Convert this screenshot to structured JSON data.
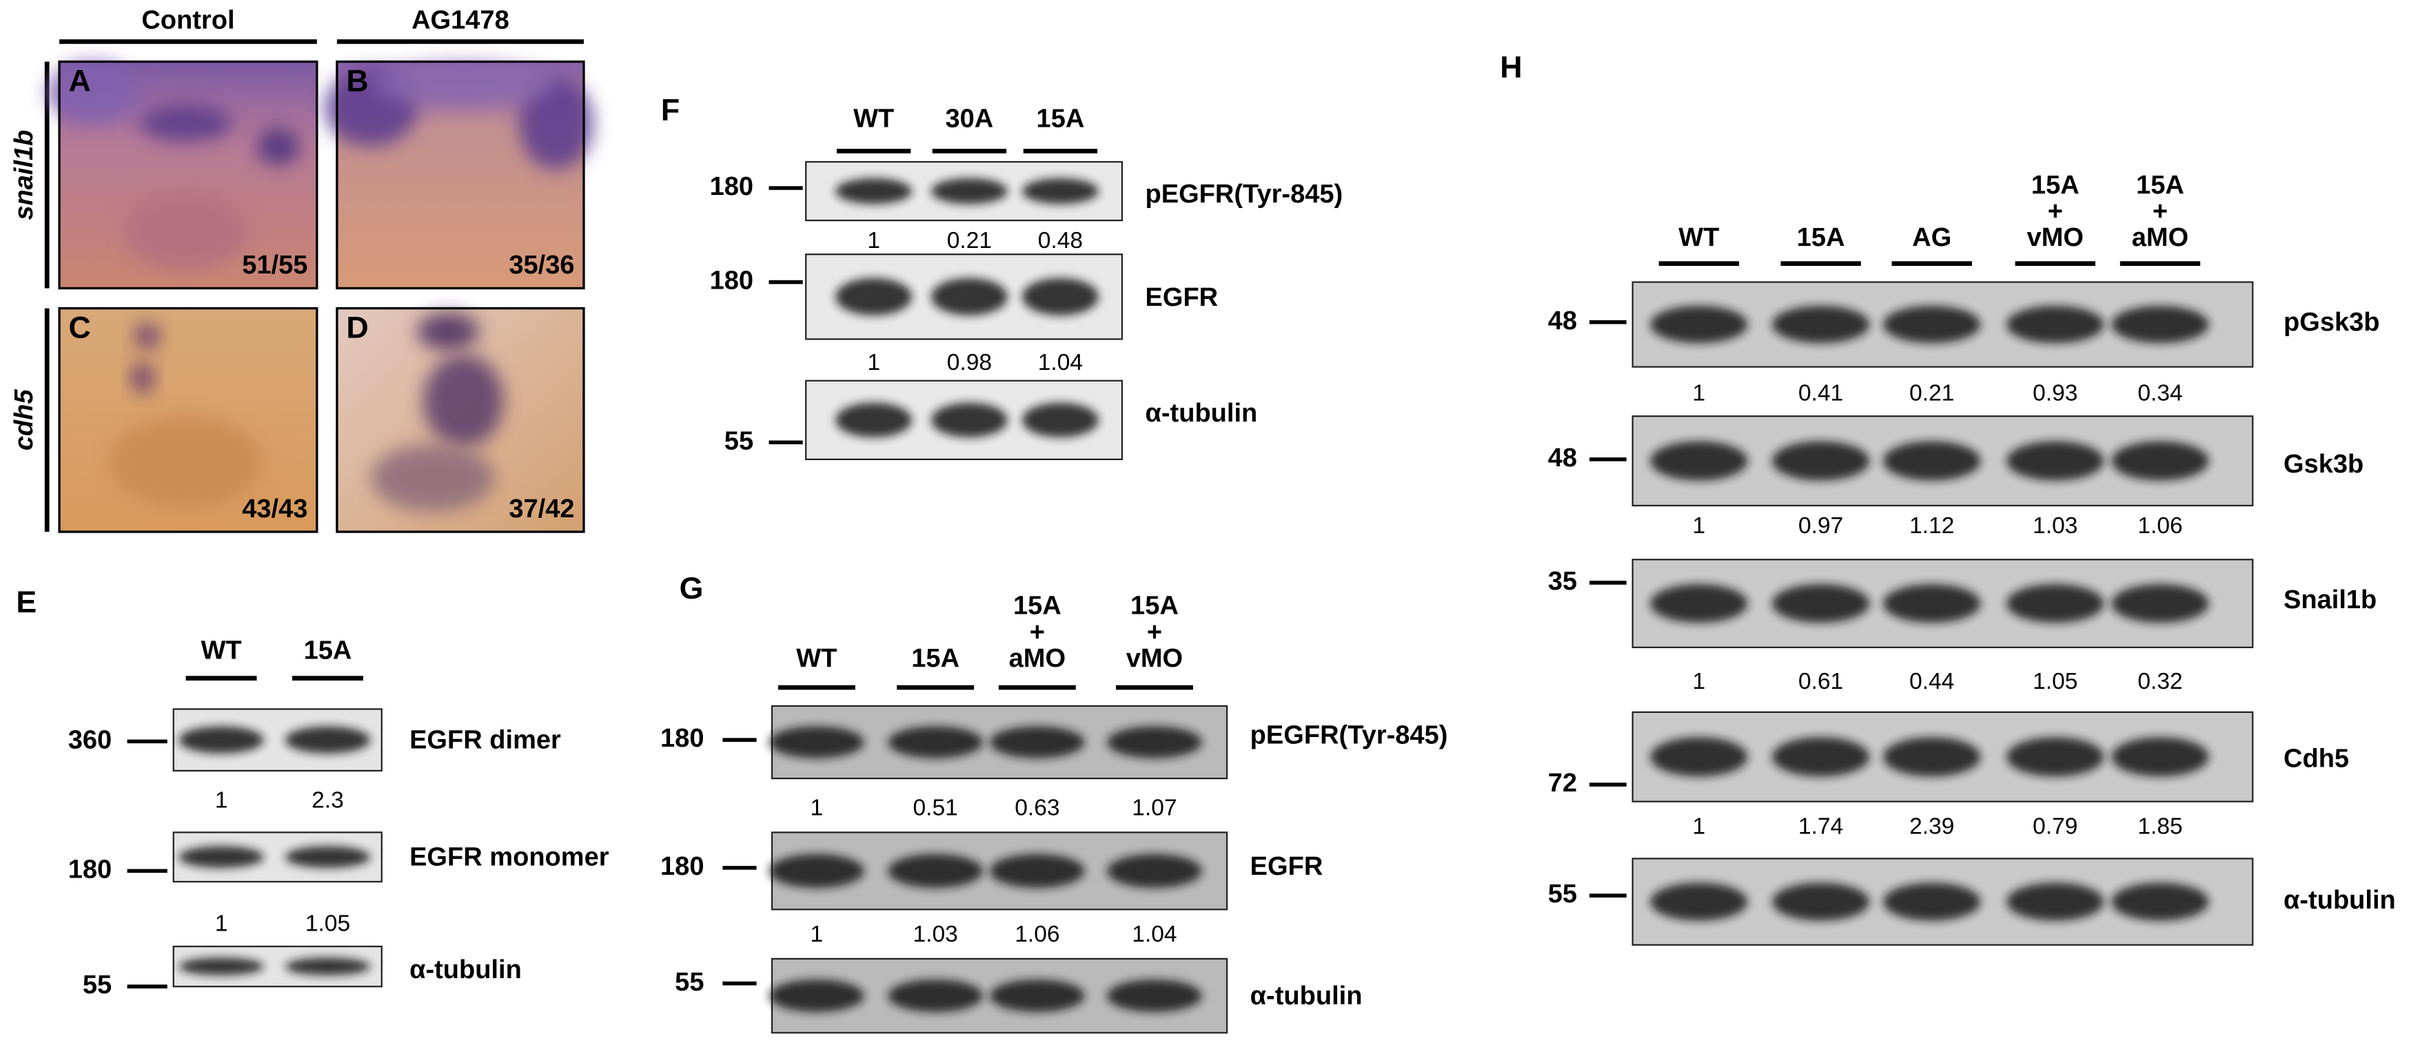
{
  "micrographs": {
    "columns": [
      "Control",
      "AG1478"
    ],
    "rows": [
      "snail1b",
      "cdh5"
    ],
    "panels": [
      {
        "letter": "A",
        "count": "51/55"
      },
      {
        "letter": "B",
        "count": "35/36"
      },
      {
        "letter": "C",
        "count": "43/43"
      },
      {
        "letter": "D",
        "count": "37/42"
      }
    ]
  },
  "blots": [
    {
      "letter": "E",
      "lanes": [
        [
          "WT"
        ],
        [
          "15A"
        ]
      ],
      "rows": [
        {
          "mw": "360",
          "protein": "EGFR dimer",
          "quant": [
            "1",
            "2.3"
          ]
        },
        {
          "mw": "180",
          "protein": "EGFR monomer",
          "quant": [
            "1",
            "1.05"
          ]
        },
        {
          "mw": "55",
          "protein": "α-tubulin"
        }
      ]
    },
    {
      "letter": "F",
      "lanes": [
        [
          "WT"
        ],
        [
          "30A"
        ],
        [
          "15A"
        ]
      ],
      "rows": [
        {
          "mw": "180",
          "protein": "pEGFR(Tyr-845)",
          "quant": [
            "1",
            "0.21",
            "0.48"
          ]
        },
        {
          "mw": "180",
          "protein": "EGFR",
          "quant": [
            "1",
            "0.98",
            "1.04"
          ]
        },
        {
          "mw": "55",
          "protein": "α-tubulin"
        }
      ]
    },
    {
      "letter": "G",
      "lanes": [
        [
          "WT"
        ],
        [
          "15A"
        ],
        [
          "15A",
          "+",
          "aMO"
        ],
        [
          "15A",
          "+",
          "vMO"
        ]
      ],
      "rows": [
        {
          "mw": "180",
          "protein": "pEGFR(Tyr-845)",
          "quant": [
            "1",
            "0.51",
            "0.63",
            "1.07"
          ]
        },
        {
          "mw": "180",
          "protein": "EGFR",
          "quant": [
            "1",
            "1.03",
            "1.06",
            "1.04"
          ]
        },
        {
          "mw": "55",
          "protein": "α-tubulin"
        }
      ]
    },
    {
      "letter": "H",
      "lanes": [
        [
          "WT"
        ],
        [
          "15A"
        ],
        [
          "AG"
        ],
        [
          "15A",
          "+",
          "vMO"
        ],
        [
          "15A",
          "+",
          "aMO"
        ]
      ],
      "rows": [
        {
          "mw": "48",
          "protein": "pGsk3b",
          "quant": [
            "1",
            "0.41",
            "0.21",
            "0.93",
            "0.34"
          ]
        },
        {
          "mw": "48",
          "protein": "Gsk3b",
          "quant": [
            "1",
            "0.97",
            "1.12",
            "1.03",
            "1.06"
          ]
        },
        {
          "mw": "35",
          "protein": "Snail1b",
          "quant": [
            "1",
            "0.61",
            "0.44",
            "1.05",
            "0.32"
          ]
        },
        {
          "mw": "72",
          "protein": "Cdh5",
          "quant": [
            "1",
            "1.74",
            "2.39",
            "0.79",
            "1.85"
          ]
        },
        {
          "mw": "55",
          "protein": "α-tubulin"
        }
      ]
    }
  ]
}
